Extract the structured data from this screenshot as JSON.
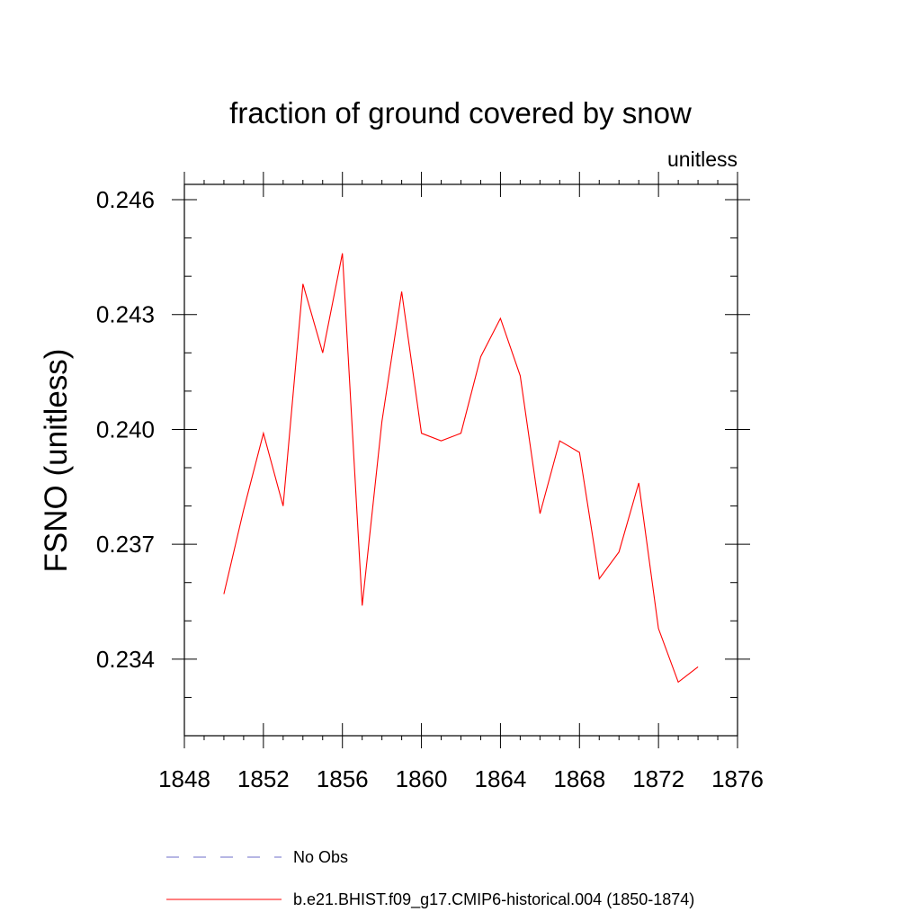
{
  "chart_data": {
    "type": "line",
    "title": "fraction of ground covered by snow",
    "units_label": "unitless",
    "xlabel": "",
    "ylabel": "FSNO  (unitless)",
    "xlim": [
      1848,
      1876
    ],
    "ylim": [
      0.232,
      0.2464
    ],
    "x_ticks": [
      1848,
      1852,
      1856,
      1860,
      1864,
      1868,
      1872,
      1876
    ],
    "x_tick_labels": [
      "1848",
      "1852",
      "1856",
      "1860",
      "1864",
      "1868",
      "1872",
      "1876"
    ],
    "y_ticks": [
      0.234,
      0.237,
      0.24,
      0.243,
      0.246
    ],
    "y_tick_labels": [
      "0.234",
      "0.237",
      "0.240",
      "0.243",
      "0.246"
    ],
    "grid": false,
    "legend_position": "bottom",
    "series": [
      {
        "name": "No Obs",
        "color": "#6c6cc8",
        "dashed": true,
        "x": [],
        "values": []
      },
      {
        "name": "b.e21.BHIST.f09_g17.CMIP6-historical.004 (1850-1874)",
        "color": "#ff0000",
        "dashed": false,
        "x": [
          1850,
          1851,
          1852,
          1853,
          1854,
          1855,
          1856,
          1857,
          1858,
          1859,
          1860,
          1861,
          1862,
          1863,
          1864,
          1865,
          1866,
          1867,
          1868,
          1869,
          1870,
          1871,
          1872,
          1873,
          1874
        ],
        "values": [
          0.2357,
          0.2379,
          0.2399,
          0.238,
          0.2438,
          0.242,
          0.2446,
          0.2354,
          0.2402,
          0.2436,
          0.2399,
          0.2397,
          0.2399,
          0.2419,
          0.2429,
          0.2414,
          0.2378,
          0.2397,
          0.2394,
          0.2361,
          0.2368,
          0.2386,
          0.2348,
          0.2334,
          0.2338
        ]
      }
    ]
  }
}
